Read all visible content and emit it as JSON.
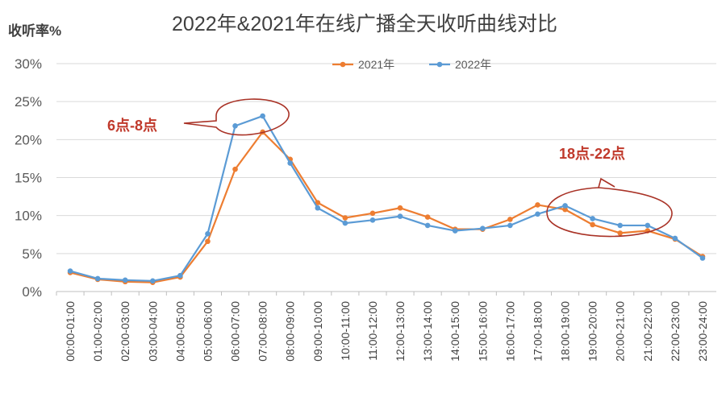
{
  "chart_data": {
    "type": "line",
    "title": "2022年&2021年在线广播全天收听曲线对比",
    "ylabel": "收听率%",
    "xlabel": "",
    "ylim": [
      0,
      30
    ],
    "yticks": [
      "0%",
      "5%",
      "10%",
      "15%",
      "20%",
      "25%",
      "30%"
    ],
    "grid": "horizontal",
    "legend_position": "top-center",
    "categories": [
      "00:00-01:00",
      "01:00-02:00",
      "02:00-03:00",
      "03:00-04:00",
      "04:00-05:00",
      "05:00-06:00",
      "06:00-07:00",
      "07:00-08:00",
      "08:00-09:00",
      "09:00-10:00",
      "10:00-11:00",
      "11:00-12:00",
      "12:00-13:00",
      "13:00-14:00",
      "14:00-15:00",
      "15:00-16:00",
      "16:00-17:00",
      "17:00-18:00",
      "18:00-19:00",
      "19:00-20:00",
      "20:00-21:00",
      "21:00-22:00",
      "22:00-23:00",
      "23:00-24:00"
    ],
    "series": [
      {
        "name": "2021年",
        "color": "#ed7d31",
        "values": [
          2.5,
          1.6,
          1.3,
          1.2,
          1.9,
          6.6,
          16.1,
          21.0,
          17.4,
          11.7,
          9.7,
          10.3,
          11.0,
          9.8,
          8.2,
          8.2,
          9.5,
          11.4,
          10.8,
          8.8,
          7.7,
          8.0,
          6.9,
          4.6
        ]
      },
      {
        "name": "2022年",
        "color": "#5b9bd5",
        "values": [
          2.7,
          1.7,
          1.5,
          1.4,
          2.1,
          7.6,
          21.8,
          23.1,
          16.9,
          11.0,
          9.0,
          9.4,
          9.9,
          8.7,
          8.0,
          8.3,
          8.7,
          10.2,
          11.3,
          9.6,
          8.7,
          8.7,
          7.0,
          4.4
        ]
      }
    ],
    "annotations": [
      {
        "text": "6点-8点",
        "color": "#c0392b"
      },
      {
        "text": "18点-22点",
        "color": "#c0392b"
      }
    ]
  }
}
